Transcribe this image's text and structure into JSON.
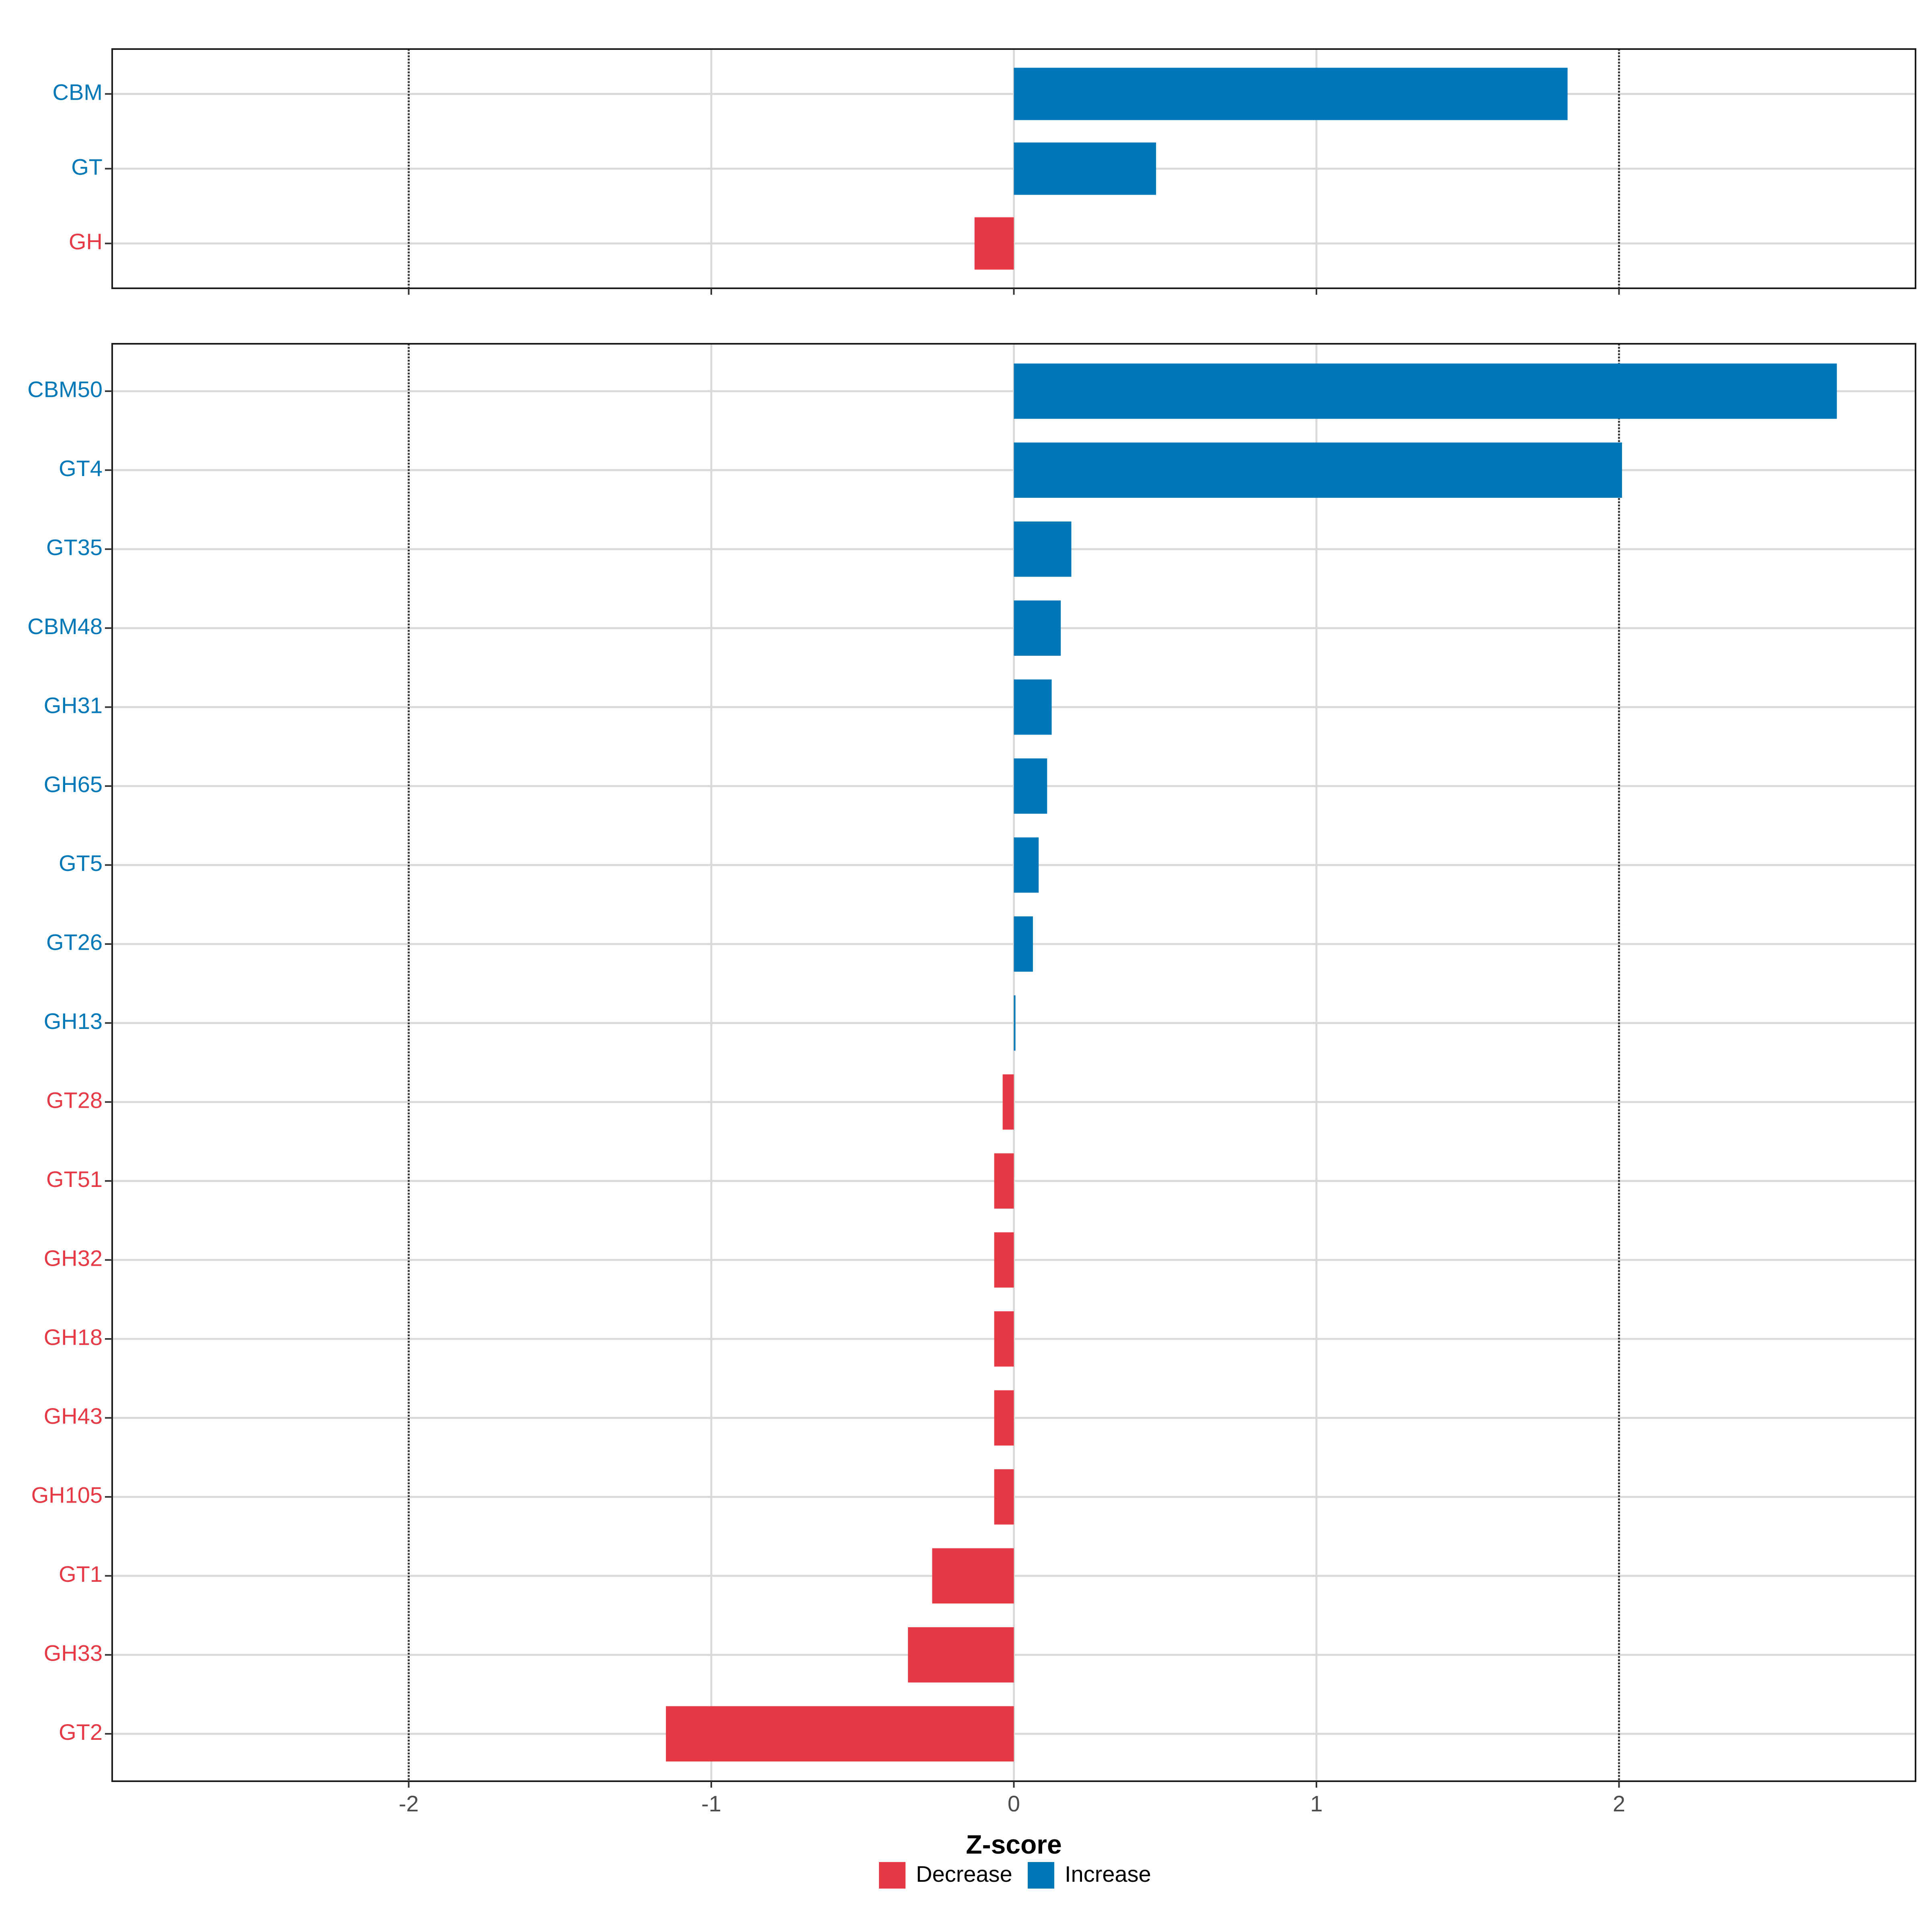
{
  "chart_data": [
    {
      "type": "bar",
      "orientation": "horizontal",
      "panel": "top",
      "categories": [
        "CBM",
        "GT",
        "GH"
      ],
      "values": [
        1.83,
        0.47,
        -0.13
      ],
      "xlim": [
        -2.98,
        2.98
      ],
      "grid": true,
      "reference_lines": [
        -2,
        2
      ]
    },
    {
      "type": "bar",
      "orientation": "horizontal",
      "panel": "bottom",
      "categories": [
        "CBM50",
        "GT4",
        "GT35",
        "CBM48",
        "GH31",
        "GH65",
        "GT5",
        "GT26",
        "GH13",
        "GT28",
        "GT51",
        "GH32",
        "GH18",
        "GH43",
        "GH105",
        "GT1",
        "GH33",
        "GT2"
      ],
      "values": [
        2.72,
        2.01,
        0.19,
        0.155,
        0.125,
        0.11,
        0.082,
        0.063,
        0.005,
        -0.037,
        -0.065,
        -0.065,
        -0.065,
        -0.065,
        -0.065,
        -0.27,
        -0.35,
        -1.15
      ],
      "xlim": [
        -2.98,
        2.98
      ],
      "grid": true,
      "reference_lines": [
        -2,
        2
      ]
    }
  ],
  "axis": {
    "xlabel": "Z-score",
    "ticks": [
      -2,
      -1,
      0,
      1,
      2
    ],
    "tick_labels": [
      "-2",
      "-1",
      "0",
      "1",
      "2"
    ]
  },
  "legend": {
    "position": "bottom",
    "items": [
      {
        "label": "Decrease",
        "color": "#e63946"
      },
      {
        "label": "Increase",
        "color": "#0077b6"
      }
    ]
  },
  "colors": {
    "increase": "#0077b6",
    "decrease": "#e63946",
    "grid": "#d9d9d9",
    "reference_line": "#333333",
    "tick_label": "#4d4d4d"
  }
}
